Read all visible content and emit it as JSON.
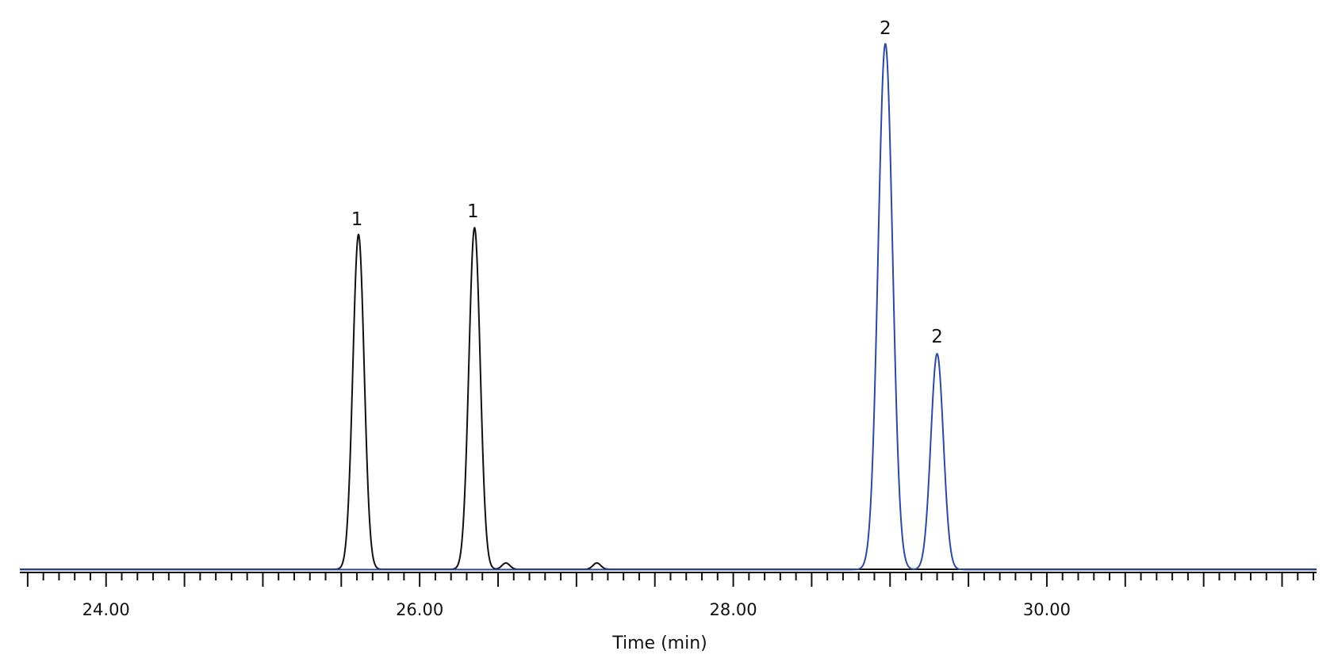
{
  "chart_data": {
    "type": "line",
    "title": "",
    "xlabel": "Time (min)",
    "ylabel": "",
    "xlim": [
      23.45,
      31.72
    ],
    "ylim": [
      0,
      100
    ],
    "grid": false,
    "legend": "none",
    "x_ticks": [
      {
        "value": 24.0,
        "label": "24.00"
      },
      {
        "value": 26.0,
        "label": "26.00"
      },
      {
        "value": 28.0,
        "label": "28.00"
      },
      {
        "value": 30.0,
        "label": "30.00"
      }
    ],
    "minor_tick_step": 0.1,
    "medium_tick_step": 0.5,
    "series": [
      {
        "color": "#111111",
        "baseline": 0.15,
        "peaks": [
          {
            "x": 25.61,
            "height": 63.6,
            "width": 0.036
          },
          {
            "x": 26.35,
            "height": 64.9,
            "width": 0.036
          },
          {
            "x": 26.55,
            "height": 1.2,
            "width": 0.025
          },
          {
            "x": 27.13,
            "height": 1.2,
            "width": 0.025
          }
        ]
      },
      {
        "color": "#2b4aa0",
        "baseline": 0.1,
        "peaks": [
          {
            "x": 28.97,
            "height": 99.9,
            "width": 0.046
          },
          {
            "x": 29.3,
            "height": 41.0,
            "width": 0.04
          }
        ]
      }
    ],
    "annotations": [
      {
        "text": "1",
        "x": 25.6,
        "y": 65.5
      },
      {
        "text": "1",
        "x": 26.34,
        "y": 67.0
      },
      {
        "text": "2",
        "x": 28.97,
        "y": 101.8
      },
      {
        "text": "2",
        "x": 29.3,
        "y": 43.2
      }
    ]
  }
}
